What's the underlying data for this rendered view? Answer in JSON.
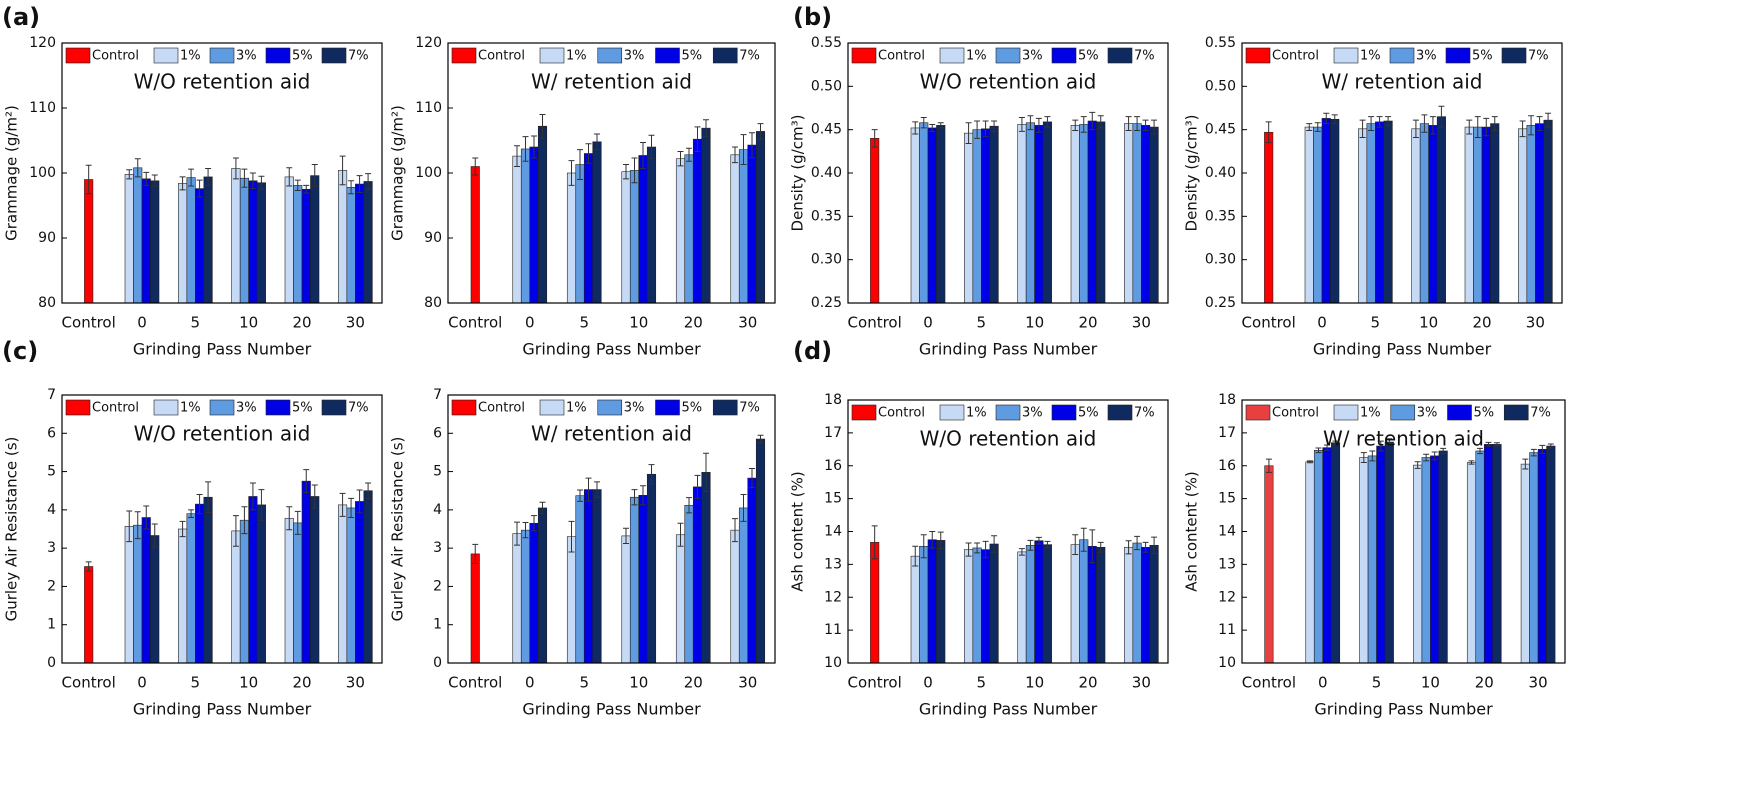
{
  "chart_data": [
    {
      "type": "bar",
      "panel_label": "(a)",
      "title": "W/O retention aid",
      "xlabel": "Grinding Pass Number",
      "ylabel": "Grammage (g/m²)",
      "categories": [
        "Control",
        "0",
        "5",
        "10",
        "20",
        "30"
      ],
      "ylim": [
        80,
        120
      ],
      "yticks": [
        80,
        90,
        100,
        110,
        120
      ],
      "series": [
        {
          "name": "Control",
          "color": "#ff0000",
          "values": [
            99,
            null,
            null,
            null,
            null,
            null
          ],
          "errors": [
            2.2,
            null,
            null,
            null,
            null,
            null
          ]
        },
        {
          "name": "1%",
          "color": "#c6d9f5",
          "values": [
            null,
            99.8,
            98.4,
            100.7,
            99.4,
            100.4
          ],
          "errors": [
            null,
            0.7,
            1,
            1.6,
            1.4,
            2.2
          ]
        },
        {
          "name": "3%",
          "color": "#5f9be0",
          "values": [
            null,
            100.8,
            99.3,
            99.2,
            98.1,
            97.8
          ],
          "errors": [
            null,
            1.4,
            1.3,
            1.4,
            0.8,
            1
          ]
        },
        {
          "name": "5%",
          "color": "#0000e6",
          "values": [
            null,
            99.1,
            97.6,
            98.8,
            97.5,
            98.3
          ],
          "errors": [
            null,
            1,
            1.3,
            1.2,
            0.6,
            1.3
          ]
        },
        {
          "name": "7%",
          "color": "#0f2a5e",
          "values": [
            null,
            98.8,
            99.4,
            98.5,
            99.6,
            98.7
          ],
          "errors": [
            null,
            0.9,
            1.3,
            1,
            1.7,
            1.2
          ]
        }
      ]
    },
    {
      "type": "bar",
      "title": "W/ retention aid",
      "xlabel": "Grinding Pass Number",
      "ylabel": "Grammage (g/m²)",
      "categories": [
        "Control",
        "0",
        "5",
        "10",
        "20",
        "30"
      ],
      "ylim": [
        80,
        120
      ],
      "yticks": [
        80,
        90,
        100,
        110,
        120
      ],
      "series": [
        {
          "name": "Control",
          "color": "#ff0000",
          "values": [
            101,
            null,
            null,
            null,
            null,
            null
          ],
          "errors": [
            1.3,
            null,
            null,
            null,
            null,
            null
          ]
        },
        {
          "name": "1%",
          "color": "#c6d9f5",
          "values": [
            null,
            102.6,
            100,
            100.2,
            102.2,
            102.8
          ],
          "errors": [
            null,
            1.6,
            1.9,
            1.1,
            1.1,
            1.2
          ]
        },
        {
          "name": "3%",
          "color": "#5f9be0",
          "values": [
            null,
            103.7,
            101.3,
            100.4,
            102.8,
            103.6
          ],
          "errors": [
            null,
            1.9,
            2.3,
            1.9,
            1,
            2.3
          ]
        },
        {
          "name": "5%",
          "color": "#0000e6",
          "values": [
            null,
            104,
            103,
            102.7,
            105.2,
            104.3
          ],
          "errors": [
            null,
            1.7,
            1.5,
            2,
            1.9,
            1.9
          ]
        },
        {
          "name": "7%",
          "color": "#0f2a5e",
          "values": [
            null,
            107.2,
            104.8,
            104,
            106.9,
            106.4
          ],
          "errors": [
            null,
            1.8,
            1.2,
            1.8,
            1.3,
            1.2
          ]
        }
      ]
    },
    {
      "type": "bar",
      "panel_label": "(b)",
      "title": "W/O retention aid",
      "xlabel": "Grinding Pass Number",
      "ylabel": "Density (g/cm³)",
      "categories": [
        "Control",
        "0",
        "5",
        "10",
        "20",
        "30"
      ],
      "ylim": [
        0.25,
        0.55
      ],
      "yticks": [
        0.25,
        {
          "value": 0.3,
          "label": "0.30"
        },
        0.35,
        {
          "value": 0.4,
          "label": "0.40"
        },
        0.45,
        {
          "value": 0.5,
          "label": "0.50"
        },
        0.55
      ],
      "series": [
        {
          "name": "Control",
          "color": "#ff0000",
          "values": [
            0.44,
            null,
            null,
            null,
            null,
            null
          ],
          "errors": [
            0.01,
            null,
            null,
            null,
            null,
            null
          ]
        },
        {
          "name": "1%",
          "color": "#c6d9f5",
          "values": [
            null,
            0.452,
            0.446,
            0.456,
            0.455,
            0.457
          ],
          "errors": [
            null,
            0.007,
            0.012,
            0.008,
            0.006,
            0.008
          ]
        },
        {
          "name": "3%",
          "color": "#5f9be0",
          "values": [
            null,
            0.458,
            0.45,
            0.458,
            0.456,
            0.457
          ],
          "errors": [
            null,
            0.006,
            0.01,
            0.008,
            0.009,
            0.008
          ]
        },
        {
          "name": "5%",
          "color": "#0000e6",
          "values": [
            null,
            0.452,
            0.451,
            0.455,
            0.46,
            0.455
          ],
          "errors": [
            null,
            0.004,
            0.009,
            0.008,
            0.01,
            0.006
          ]
        },
        {
          "name": "7%",
          "color": "#0f2a5e",
          "values": [
            null,
            0.455,
            0.454,
            0.459,
            0.459,
            0.453
          ],
          "errors": [
            null,
            0.003,
            0.006,
            0.006,
            0.007,
            0.008
          ]
        }
      ]
    },
    {
      "type": "bar",
      "title": "W/ retention aid",
      "xlabel": "Grinding Pass Number",
      "ylabel": "Density (g/cm³)",
      "categories": [
        "Control",
        "0",
        "5",
        "10",
        "20",
        "30"
      ],
      "ylim": [
        0.25,
        0.55
      ],
      "yticks": [
        0.25,
        {
          "value": 0.3,
          "label": "0.30"
        },
        0.35,
        {
          "value": 0.4,
          "label": "0.40"
        },
        0.45,
        {
          "value": 0.5,
          "label": "0.50"
        },
        0.55
      ],
      "series": [
        {
          "name": "Control",
          "color": "#ff0000",
          "values": [
            0.447,
            null,
            null,
            null,
            null,
            null
          ],
          "errors": [
            0.012,
            null,
            null,
            null,
            null,
            null
          ]
        },
        {
          "name": "1%",
          "color": "#c6d9f5",
          "values": [
            null,
            0.453,
            0.451,
            0.451,
            0.453,
            0.451
          ],
          "errors": [
            null,
            0.004,
            0.01,
            0.01,
            0.008,
            0.009
          ]
        },
        {
          "name": "3%",
          "color": "#5f9be0",
          "values": [
            null,
            0.453,
            0.457,
            0.457,
            0.453,
            0.455
          ],
          "errors": [
            null,
            0.005,
            0.008,
            0.01,
            0.012,
            0.011
          ]
        },
        {
          "name": "5%",
          "color": "#0000e6",
          "values": [
            null,
            0.463,
            0.459,
            0.455,
            0.453,
            0.457
          ],
          "errors": [
            null,
            0.006,
            0.006,
            0.01,
            0.01,
            0.008
          ]
        },
        {
          "name": "7%",
          "color": "#0f2a5e",
          "values": [
            null,
            0.462,
            0.46,
            0.465,
            0.457,
            0.461
          ],
          "errors": [
            null,
            0.005,
            0.005,
            0.012,
            0.008,
            0.008
          ]
        }
      ]
    },
    {
      "type": "bar",
      "panel_label": "(c)",
      "title": "W/O retention aid",
      "xlabel": "Grinding Pass Number",
      "ylabel": "Gurley Air Resistance (s)",
      "categories": [
        "Control",
        "0",
        "5",
        "10",
        "20",
        "30"
      ],
      "ylim": [
        0,
        7
      ],
      "yticks": [
        0,
        1,
        2,
        3,
        4,
        5,
        6,
        7
      ],
      "series": [
        {
          "name": "Control",
          "color": "#ff0000",
          "values": [
            2.52,
            null,
            null,
            null,
            null,
            null
          ],
          "errors": [
            0.12,
            null,
            null,
            null,
            null,
            null
          ]
        },
        {
          "name": "1%",
          "color": "#c6d9f5",
          "values": [
            null,
            3.57,
            3.5,
            3.45,
            3.78,
            4.13
          ],
          "errors": [
            null,
            0.4,
            0.2,
            0.4,
            0.3,
            0.3
          ]
        },
        {
          "name": "3%",
          "color": "#5f9be0",
          "values": [
            null,
            3.6,
            3.9,
            3.73,
            3.66,
            4.05
          ],
          "errors": [
            null,
            0.35,
            0.1,
            0.35,
            0.3,
            0.25
          ]
        },
        {
          "name": "5%",
          "color": "#0000e6",
          "values": [
            null,
            3.8,
            4.15,
            4.35,
            4.75,
            4.22
          ],
          "errors": [
            null,
            0.3,
            0.25,
            0.35,
            0.3,
            0.3
          ]
        },
        {
          "name": "7%",
          "color": "#0f2a5e",
          "values": [
            null,
            3.33,
            4.33,
            4.13,
            4.35,
            4.5
          ],
          "errors": [
            null,
            0.3,
            0.4,
            0.4,
            0.3,
            0.2
          ]
        }
      ]
    },
    {
      "type": "bar",
      "title": "W/ retention aid",
      "xlabel": "Grinding Pass Number",
      "ylabel": "Gurley Air Resistance (s)",
      "categories": [
        "Control",
        "0",
        "5",
        "10",
        "20",
        "30"
      ],
      "ylim": [
        0,
        7
      ],
      "yticks": [
        0,
        1,
        2,
        3,
        4,
        5,
        6,
        7
      ],
      "series": [
        {
          "name": "Control",
          "color": "#ff0000",
          "values": [
            2.85,
            null,
            null,
            null,
            null,
            null
          ],
          "errors": [
            0.25,
            null,
            null,
            null,
            null,
            null
          ]
        },
        {
          "name": "1%",
          "color": "#c6d9f5",
          "values": [
            null,
            3.38,
            3.3,
            3.32,
            3.35,
            3.47
          ],
          "errors": [
            null,
            0.3,
            0.4,
            0.2,
            0.3,
            0.3
          ]
        },
        {
          "name": "3%",
          "color": "#5f9be0",
          "values": [
            null,
            3.47,
            4.37,
            4.33,
            4.12,
            4.05
          ],
          "errors": [
            null,
            0.2,
            0.15,
            0.2,
            0.2,
            0.35
          ]
        },
        {
          "name": "5%",
          "color": "#0000e6",
          "values": [
            null,
            3.65,
            4.53,
            4.38,
            4.6,
            4.83
          ],
          "errors": [
            null,
            0.2,
            0.3,
            0.25,
            0.3,
            0.25
          ]
        },
        {
          "name": "7%",
          "color": "#0f2a5e",
          "values": [
            null,
            4.05,
            4.53,
            4.93,
            4.98,
            5.85
          ],
          "errors": [
            null,
            0.15,
            0.2,
            0.25,
            0.5,
            0.1
          ]
        }
      ]
    },
    {
      "type": "bar",
      "panel_label": "(d)",
      "title": "W/O retention aid",
      "xlabel": "Grinding Pass Number",
      "ylabel": "Ash content (%)",
      "categories": [
        "Control",
        "0",
        "5",
        "10",
        "20",
        "30"
      ],
      "ylim": [
        10,
        18
      ],
      "yticks": [
        10,
        11,
        12,
        13,
        14,
        15,
        16,
        17,
        18
      ],
      "series": [
        {
          "name": "Control",
          "color": "#ff0000",
          "values": [
            13.67,
            null,
            null,
            null,
            null,
            null
          ],
          "errors": [
            0.5,
            null,
            null,
            null,
            null,
            null
          ]
        },
        {
          "name": "1%",
          "color": "#c6d9f5",
          "values": [
            null,
            13.25,
            13.45,
            13.38,
            13.6,
            13.52
          ],
          "errors": [
            null,
            0.3,
            0.2,
            0.1,
            0.3,
            0.2
          ]
        },
        {
          "name": "3%",
          "color": "#5f9be0",
          "values": [
            null,
            13.55,
            13.5,
            13.58,
            13.75,
            13.65
          ],
          "errors": [
            null,
            0.35,
            0.15,
            0.15,
            0.35,
            0.2
          ]
        },
        {
          "name": "5%",
          "color": "#0000e6",
          "values": [
            null,
            13.75,
            13.45,
            13.72,
            13.55,
            13.52
          ],
          "errors": [
            null,
            0.25,
            0.25,
            0.1,
            0.5,
            0.15
          ]
        },
        {
          "name": "7%",
          "color": "#0f2a5e",
          "values": [
            null,
            13.73,
            13.62,
            13.6,
            13.52,
            13.58
          ],
          "errors": [
            null,
            0.25,
            0.25,
            0.1,
            0.15,
            0.25
          ]
        }
      ]
    },
    {
      "type": "bar",
      "title": "W/ retention aid",
      "xlabel": "Grinding Pass Number",
      "ylabel": "Ash content (%)",
      "categories": [
        "Control",
        "0",
        "5",
        "10",
        "20",
        "30"
      ],
      "ylim": [
        10,
        18
      ],
      "yticks": [
        10,
        11,
        12,
        13,
        14,
        15,
        16,
        17,
        18
      ],
      "series": [
        {
          "name": "Control",
          "color": "#e84040",
          "values": [
            16,
            null,
            null,
            null,
            null,
            null
          ],
          "errors": [
            0.2,
            null,
            null,
            null,
            null,
            null
          ]
        },
        {
          "name": "1%",
          "color": "#c6d9f5",
          "values": [
            null,
            16.12,
            16.25,
            16.02,
            16.1,
            16.05
          ],
          "errors": [
            null,
            0.03,
            0.15,
            0.1,
            0.05,
            0.15
          ]
        },
        {
          "name": "3%",
          "color": "#5f9be0",
          "values": [
            null,
            16.47,
            16.3,
            16.25,
            16.45,
            16.4
          ],
          "errors": [
            null,
            0.07,
            0.15,
            0.1,
            0.08,
            0.1
          ]
        },
        {
          "name": "5%",
          "color": "#0000e6",
          "values": [
            null,
            16.55,
            16.6,
            16.3,
            16.65,
            16.5
          ],
          "errors": [
            null,
            0.08,
            0.15,
            0.12,
            0.06,
            0.12
          ]
        },
        {
          "name": "7%",
          "color": "#0f2a5e",
          "values": [
            null,
            16.7,
            16.72,
            16.45,
            16.65,
            16.6
          ],
          "errors": [
            null,
            0.05,
            0.1,
            0.08,
            0.05,
            0.06
          ]
        }
      ]
    }
  ]
}
